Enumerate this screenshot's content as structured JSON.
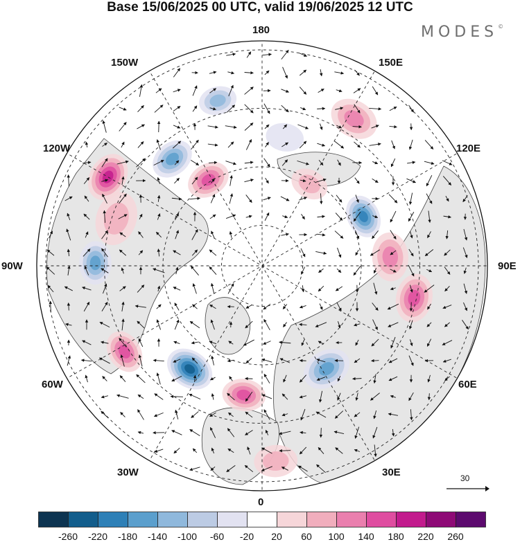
{
  "title": "Base 15/06/2025 00 UTC, valid 19/06/2025 12 UTC",
  "brand": {
    "name": "MODES",
    "mark": "©"
  },
  "longitude_labels": {
    "n180": "180",
    "w150": "150W",
    "e150": "150E",
    "w120": "120W",
    "e120": "120E",
    "w90": "90W",
    "e90": "90E",
    "w60": "60W",
    "e60": "60E",
    "w30": "30W",
    "e30": "30E",
    "s0": "0"
  },
  "reference_vector": {
    "label": "30",
    "icon": "arrow-right-icon"
  },
  "colorbar": {
    "ticks": [
      "-260",
      "-220",
      "-180",
      "-140",
      "-100",
      "-60",
      "-20",
      "20",
      "60",
      "100",
      "140",
      "180",
      "220",
      "260"
    ],
    "colors": [
      "#0d3451",
      "#125d8c",
      "#2e80b7",
      "#5b9fcd",
      "#8fb8dc",
      "#bccbe4",
      "#e2e2f1",
      "#ffffff",
      "#f6d6d9",
      "#f1aebd",
      "#ea7fae",
      "#df4da0",
      "#c21b8d",
      "#8e0a76",
      "#5c0a6e"
    ]
  },
  "anomaly_centers": [
    {
      "lon": -165,
      "dist": 0.76,
      "value": -110,
      "spread": 0.07
    },
    {
      "lon": -148,
      "dist": 0.45,
      "value": 170,
      "spread": 0.08
    },
    {
      "lon": -140,
      "dist": 0.62,
      "value": -150,
      "spread": 0.08
    },
    {
      "lon": -120,
      "dist": 0.79,
      "value": 185,
      "spread": 0.09
    },
    {
      "lon": -108,
      "dist": 0.68,
      "value": 90,
      "spread": 0.1
    },
    {
      "lon": -91,
      "dist": 0.74,
      "value": -150,
      "spread": 0.08
    },
    {
      "lon": -58,
      "dist": 0.72,
      "value": 140,
      "spread": 0.08
    },
    {
      "lon": -35,
      "dist": 0.56,
      "value": -220,
      "spread": 0.09
    },
    {
      "lon": -8,
      "dist": 0.58,
      "value": 160,
      "spread": 0.08
    },
    {
      "lon": 4,
      "dist": 0.87,
      "value": 80,
      "spread": 0.08
    },
    {
      "lon": 32,
      "dist": 0.54,
      "value": -140,
      "spread": 0.09
    },
    {
      "lon": 78,
      "dist": 0.69,
      "value": 150,
      "spread": 0.09
    },
    {
      "lon": 94,
      "dist": 0.57,
      "value": 120,
      "spread": 0.09
    },
    {
      "lon": 116,
      "dist": 0.5,
      "value": -180,
      "spread": 0.08
    },
    {
      "lon": 148,
      "dist": 0.77,
      "value": 100,
      "spread": 0.09
    },
    {
      "lon": 150,
      "dist": 0.42,
      "value": 60,
      "spread": 0.07
    },
    {
      "lon": 170,
      "dist": 0.58,
      "value": -40,
      "spread": 0.07
    }
  ]
}
